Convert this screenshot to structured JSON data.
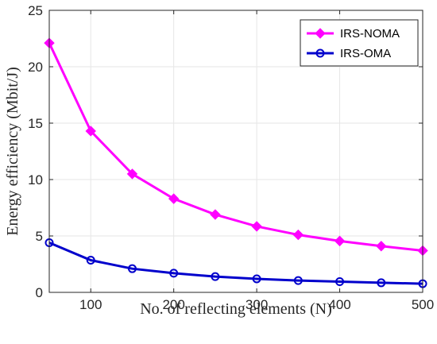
{
  "chart_data": {
    "type": "line",
    "title": "",
    "xlabel": "No. of reflecting elements (N)",
    "ylabel": "Energy efficiency (Mbit/J)",
    "xlim": [
      50,
      500
    ],
    "ylim": [
      0,
      25
    ],
    "xticks": [
      100,
      200,
      300,
      400,
      500
    ],
    "yticks": [
      0,
      5,
      10,
      15,
      20,
      25
    ],
    "grid": true,
    "legend_position": "top-right",
    "x": [
      50,
      100,
      150,
      200,
      250,
      300,
      350,
      400,
      450,
      500
    ],
    "series": [
      {
        "name": "IRS-NOMA",
        "color": "#ff00ff",
        "marker": "diamond",
        "values": [
          22.1,
          14.3,
          10.5,
          8.3,
          6.9,
          5.85,
          5.1,
          4.55,
          4.1,
          3.7
        ]
      },
      {
        "name": "IRS-OMA",
        "color": "#0000cc",
        "marker": "circle",
        "values": [
          4.4,
          2.85,
          2.1,
          1.7,
          1.4,
          1.2,
          1.05,
          0.95,
          0.85,
          0.77
        ]
      }
    ]
  }
}
